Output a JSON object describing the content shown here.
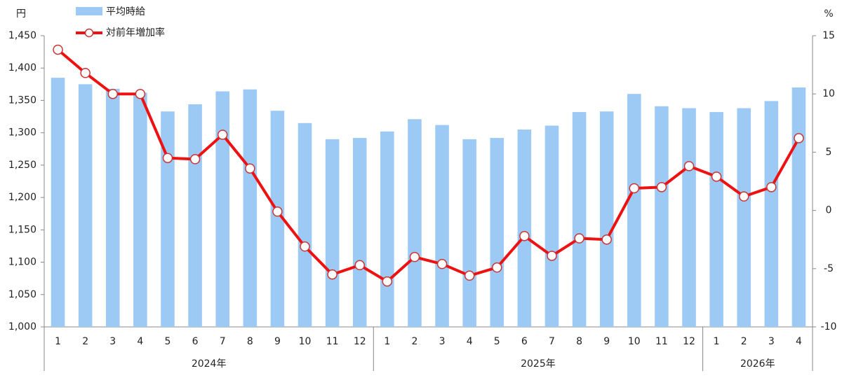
{
  "chart_data": {
    "type": "bar_line",
    "y_unit": "円",
    "y2_unit": "%",
    "groups": [
      {
        "label": "2024年",
        "categories": [
          "1",
          "2",
          "3",
          "4",
          "5",
          "6",
          "7",
          "8",
          "9",
          "10",
          "11",
          "12"
        ]
      },
      {
        "label": "2025年",
        "categories": [
          "1",
          "2",
          "3",
          "4",
          "5",
          "6",
          "7",
          "8",
          "9",
          "10",
          "11",
          "12"
        ]
      },
      {
        "label": "2026年",
        "categories": [
          "1",
          "2",
          "3",
          "4"
        ]
      }
    ],
    "series": [
      {
        "name": "平均時給",
        "type": "bar",
        "color": "#9ccaf5",
        "axis": "y",
        "values": [
          1385,
          1375,
          1368,
          1362,
          1333,
          1344,
          1364,
          1367,
          1334,
          1315,
          1290,
          1292,
          1302,
          1321,
          1312,
          1290,
          1292,
          1305,
          1311,
          1332,
          1333,
          1360,
          1341,
          1338,
          1332,
          1338,
          1349,
          1370
        ]
      },
      {
        "name": "対前年増加率",
        "type": "line",
        "color": "#ee1111",
        "axis": "y2",
        "values": [
          13.8,
          11.8,
          10.0,
          10.0,
          4.5,
          4.4,
          6.5,
          3.6,
          -0.1,
          -3.1,
          -5.5,
          -4.7,
          -6.1,
          -4.0,
          -4.6,
          -5.6,
          -4.9,
          -2.2,
          -3.9,
          -2.4,
          -2.5,
          1.9,
          2.0,
          3.8,
          2.9,
          1.2,
          2.0,
          6.2
        ]
      }
    ],
    "ylim": [
      1000,
      1450
    ],
    "yticks": [
      {
        "value": 1000,
        "label": "1,000"
      },
      {
        "value": 1050,
        "label": "1,050"
      },
      {
        "value": 1100,
        "label": "1,100"
      },
      {
        "value": 1150,
        "label": "1,150"
      },
      {
        "value": 1200,
        "label": "1,200"
      },
      {
        "value": 1250,
        "label": "1,250"
      },
      {
        "value": 1300,
        "label": "1,300"
      },
      {
        "value": 1350,
        "label": "1,350"
      },
      {
        "value": 1400,
        "label": "1,400"
      },
      {
        "value": 1450,
        "label": "1,450"
      }
    ],
    "y2lim": [
      -10,
      15
    ],
    "y2ticks": [
      -10,
      -5,
      0,
      5,
      10,
      15
    ]
  }
}
